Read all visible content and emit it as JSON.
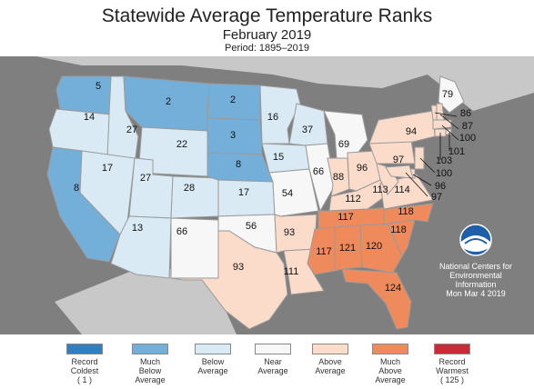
{
  "title": "Statewide Average Temperature Ranks",
  "subtitle": "February 2019",
  "period": "Period: 1895–2019",
  "map": {
    "background_color": "#7f7f7f",
    "neighbor_land_color": "#c8c8c8",
    "state_border_color": "#9a9a9a"
  },
  "ranks": {
    "WA": 5,
    "OR": 14,
    "CA": 8,
    "ID": 27,
    "NV": 17,
    "MT": 2,
    "WY": 22,
    "UT": 27,
    "AZ": 13,
    "CO": 28,
    "NM": 66,
    "ND": 2,
    "SD": 3,
    "NE": 8,
    "KS": 17,
    "OK": 56,
    "TX": 93,
    "MN": 16,
    "IA": 15,
    "MO": 54,
    "AR": 93,
    "LA": 111,
    "WI": 37,
    "IL": 66,
    "MI": 69,
    "IN": 88,
    "OH": 96,
    "KY": 112,
    "TN": 117,
    "MS": 117,
    "AL": 121,
    "GA": 120,
    "FL": 124,
    "SC": 118,
    "NC": 118,
    "VA": 114,
    "WV": 113,
    "PA": 97,
    "NY": 94,
    "ME": 79,
    "VT": 86,
    "NH": 87,
    "MA": 100,
    "RI": 101,
    "CT": 103,
    "NJ": 100,
    "DE": 96,
    "MD": 97
  },
  "legend": [
    {
      "label": "Record\nColdest\n( 1 )",
      "color": "#2f7fc0"
    },
    {
      "label": "Much\nBelow\nAverage",
      "color": "#74afd9"
    },
    {
      "label": "Below\nAverage",
      "color": "#d9eaf5"
    },
    {
      "label": "Near\nAverage",
      "color": "#f7f7f7"
    },
    {
      "label": "Above\nAverage",
      "color": "#fbdcca"
    },
    {
      "label": "Much\nAbove\nAverage",
      "color": "#ef8a5c"
    },
    {
      "label": "Record\nWarmest\n( 125 )",
      "color": "#c92a37"
    }
  ],
  "noaa": {
    "logo_text": "NOAA",
    "credit_line1": "National Centers for",
    "credit_line2": "Environmental",
    "credit_line3": "Information",
    "date": "Mon Mar  4 2019"
  }
}
